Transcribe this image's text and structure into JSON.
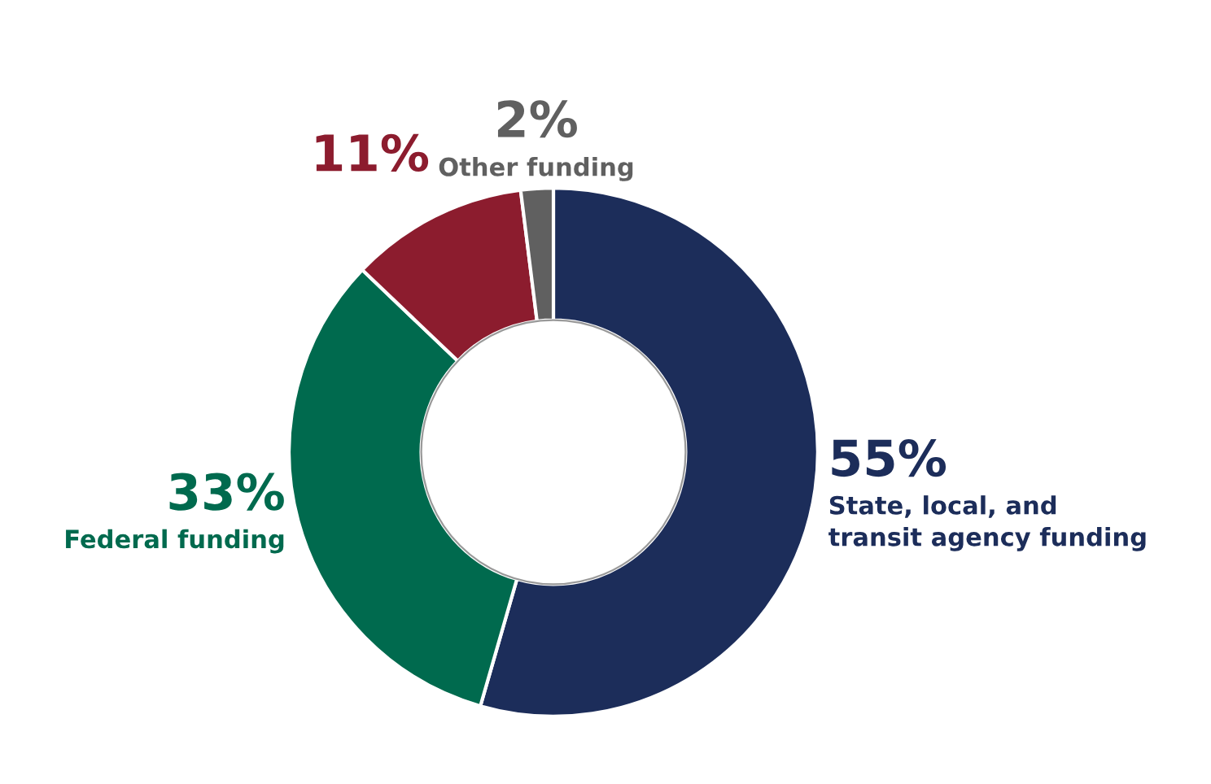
{
  "chart_data": {
    "type": "donut",
    "categories": [
      "State, local, and\ntransit agency funding",
      "Federal funding",
      null,
      "Other funding"
    ],
    "values": [
      55,
      33,
      11,
      2
    ],
    "value_labels": [
      "55%",
      "33%",
      "11%",
      "2%"
    ],
    "colors": [
      "#1c2d5a",
      "#006a4e",
      "#8c1c2e",
      "#606060"
    ],
    "legend": false
  }
}
